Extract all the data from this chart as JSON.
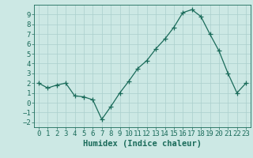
{
  "x": [
    0,
    1,
    2,
    3,
    4,
    5,
    6,
    7,
    8,
    9,
    10,
    11,
    12,
    13,
    14,
    15,
    16,
    17,
    18,
    19,
    20,
    21,
    22,
    23
  ],
  "y": [
    2,
    1.5,
    1.8,
    2,
    0.7,
    0.6,
    0.3,
    -1.7,
    -0.4,
    1.0,
    2.2,
    3.5,
    4.3,
    5.5,
    6.5,
    7.7,
    9.2,
    9.5,
    8.8,
    7.0,
    5.3,
    3.0,
    1.0,
    2.0
  ],
  "line_color": "#1a6b5a",
  "marker": "+",
  "marker_size": 4,
  "bg_color": "#cce8e4",
  "grid_color": "#aacfcc",
  "xlabel": "Humidex (Indice chaleur)",
  "ylim": [
    -2.5,
    10
  ],
  "xlim": [
    -0.5,
    23.5
  ],
  "yticks": [
    -2,
    -1,
    0,
    1,
    2,
    3,
    4,
    5,
    6,
    7,
    8,
    9
  ],
  "xticks": [
    0,
    1,
    2,
    3,
    4,
    5,
    6,
    7,
    8,
    9,
    10,
    11,
    12,
    13,
    14,
    15,
    16,
    17,
    18,
    19,
    20,
    21,
    22,
    23
  ],
  "font_color": "#1a6b5a",
  "tick_fontsize": 6.5,
  "label_fontsize": 7.5,
  "linewidth": 0.9,
  "markeredgewidth": 0.9
}
